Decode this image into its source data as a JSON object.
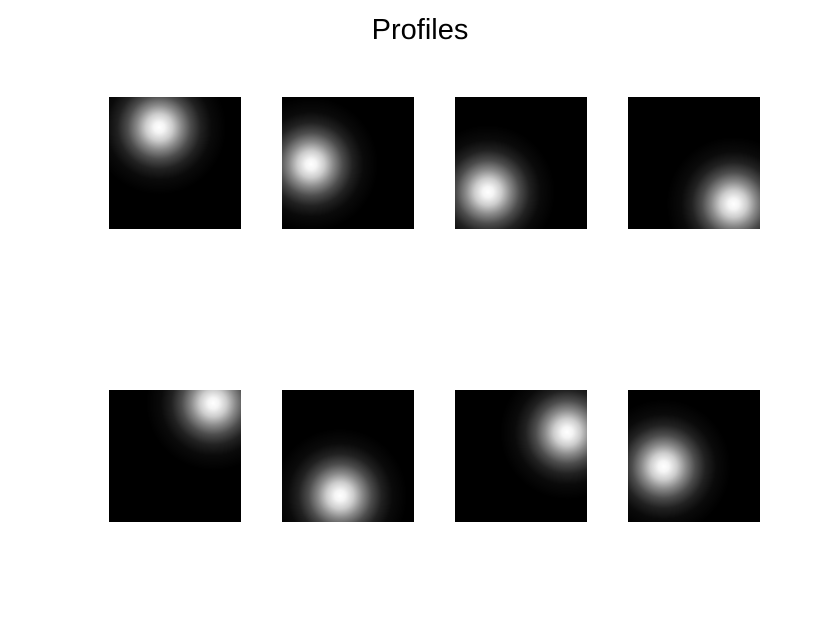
{
  "chart_data": {
    "type": "heatmap",
    "title": "Profiles",
    "colormap": "gray",
    "background_color": "#000000",
    "peak_color": "#ffffff",
    "grid": false,
    "axes_visible": false,
    "layout": {
      "rows": 2,
      "cols": 4
    },
    "xlim": [
      0,
      1
    ],
    "ylim": [
      0,
      1
    ],
    "panels": [
      {
        "row": 1,
        "col": 1,
        "center_x": 0.38,
        "center_y": 0.77,
        "spread": 0.17
      },
      {
        "row": 1,
        "col": 2,
        "center_x": 0.22,
        "center_y": 0.49,
        "spread": 0.17
      },
      {
        "row": 1,
        "col": 3,
        "center_x": 0.25,
        "center_y": 0.28,
        "spread": 0.17
      },
      {
        "row": 1,
        "col": 4,
        "center_x": 0.8,
        "center_y": 0.19,
        "spread": 0.17
      },
      {
        "row": 2,
        "col": 1,
        "center_x": 0.79,
        "center_y": 0.9,
        "spread": 0.17
      },
      {
        "row": 2,
        "col": 2,
        "center_x": 0.44,
        "center_y": 0.2,
        "spread": 0.17
      },
      {
        "row": 2,
        "col": 3,
        "center_x": 0.85,
        "center_y": 0.68,
        "spread": 0.17
      },
      {
        "row": 2,
        "col": 4,
        "center_x": 0.27,
        "center_y": 0.42,
        "spread": 0.17
      }
    ]
  }
}
